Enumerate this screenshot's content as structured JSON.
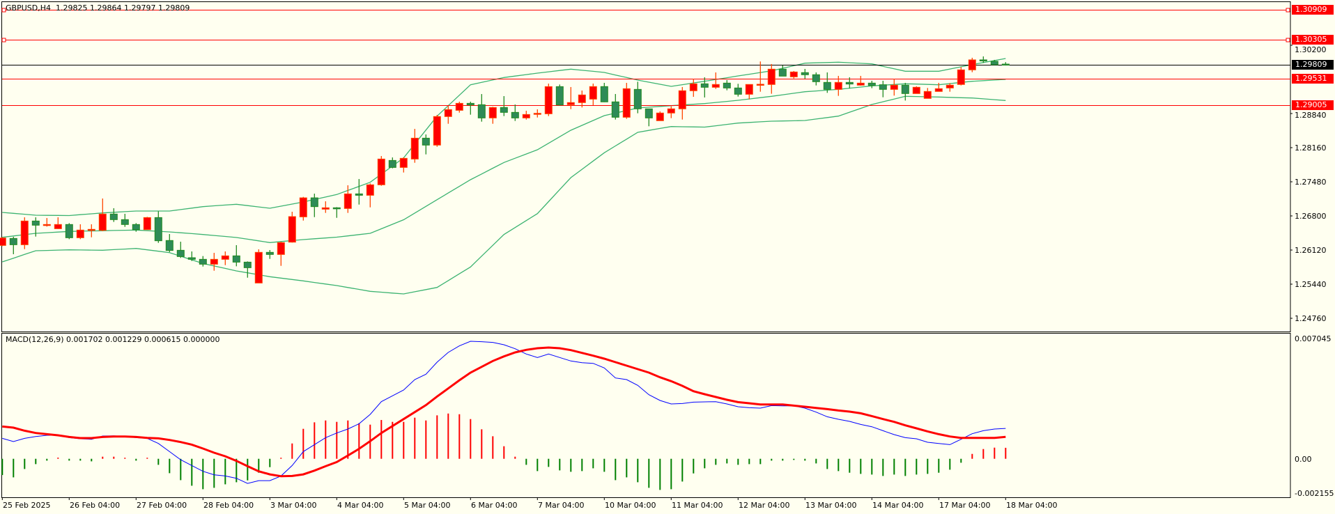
{
  "header": {
    "symbol": "GBPUSD,H4",
    "ohlc_text": "1.29825 1.29864 1.29797 1.29809"
  },
  "colors": {
    "background": "#fffff0",
    "bull_candle": "#ff0000",
    "bull_border": "#ff4500",
    "bear_candle": "#2e8b57",
    "bear_border": "#228b22",
    "bands": "#3cb371",
    "level_line": "#ff0000",
    "price_line": "#000000",
    "macd_line": "#0000ff",
    "signal_line": "#ff0000",
    "hist_positive": "#ff0000",
    "hist_negative": "#008000"
  },
  "price_axis": {
    "ticks": [
      "1.30200",
      "1.28840",
      "1.28160",
      "1.27480",
      "1.26800",
      "1.26120",
      "1.25440",
      "1.24760"
    ]
  },
  "levels": [
    {
      "label": "1.30909",
      "value": 1.30909,
      "handles": true
    },
    {
      "label": "1.30305",
      "value": 1.30305,
      "handles": true
    },
    {
      "label": "1.29531",
      "value": 1.29531,
      "handles": false
    },
    {
      "label": "1.29005",
      "value": 1.29005,
      "handles": false
    }
  ],
  "current_price": {
    "label": "1.29809",
    "value": 1.29809
  },
  "macd": {
    "label": "MACD(12,26,9) 0.001702 0.001229 0.000615 0.000000",
    "axis_ticks": [
      "0.007045",
      "0.00",
      "-0.002155"
    ],
    "range": [
      -0.002155,
      0.007045
    ],
    "macd": [
      0.001144,
      0.000962,
      0.001144,
      0.001248,
      0.001313,
      0.001313,
      0.001183,
      0.001118,
      0.001092,
      0.001274,
      0.001287,
      0.001248,
      0.001183,
      0.001144,
      0.000858,
      0.000403,
      -5.2e-05,
      -0.000377,
      -0.000702,
      -0.000897,
      -0.000962,
      -0.001092,
      -0.001378,
      -0.001222,
      -0.001222,
      -0.000962,
      -0.000377,
      0.000403,
      0.000793,
      0.001183,
      0.001443,
      0.001664,
      0.001963,
      0.002483,
      0.003198,
      0.003523,
      0.003848,
      0.004433,
      0.004732,
      0.005408,
      0.005954,
      0.006318,
      0.006578,
      0.006552,
      0.006513,
      0.006383,
      0.006162,
      0.005863,
      0.005668,
      0.005863,
      0.005668,
      0.005473,
      0.005382,
      0.005343,
      0.005083,
      0.004524,
      0.004433,
      0.004108,
      0.003588,
      0.003263,
      0.003068,
      0.003094,
      0.003172,
      0.003185,
      0.003198,
      0.003068,
      0.002912,
      0.00286,
      0.002834,
      0.002977,
      0.002964,
      0.002964,
      0.002834,
      0.002613,
      0.002353,
      0.00221,
      0.002093,
      0.001924,
      0.001794,
      0.001573,
      0.001352,
      0.001183,
      0.001118,
      0.000923,
      0.000858,
      0.000793,
      0.001092,
      0.001404,
      0.001573,
      0.001664,
      0.001702
    ],
    "signal": [
      0.001807,
      0.001742,
      0.001573,
      0.001443,
      0.001378,
      0.001313,
      0.001222,
      0.001157,
      0.001157,
      0.001222,
      0.001248,
      0.001248,
      0.001222,
      0.00117,
      0.001144,
      0.001053,
      0.000936,
      0.000793,
      0.000572,
      0.000338,
      0.000143,
      -0.000117,
      -0.000416,
      -0.000702,
      -0.000871,
      -0.000975,
      -0.000962,
      -0.000871,
      -0.000663,
      -0.000416,
      -0.000182,
      0.000182,
      0.000559,
      0.000988,
      0.001443,
      0.001833,
      0.002223,
      0.002613,
      0.003003,
      0.003484,
      0.003939,
      0.004394,
      0.004823,
      0.005148,
      0.005473,
      0.005733,
      0.005954,
      0.006097,
      0.006188,
      0.006227,
      0.006188,
      0.006084,
      0.005928,
      0.005772,
      0.005603,
      0.005408,
      0.005213,
      0.005018,
      0.004823,
      0.004563,
      0.004342,
      0.004082,
      0.003783,
      0.003614,
      0.003458,
      0.003302,
      0.003172,
      0.003107,
      0.003042,
      0.003042,
      0.003042,
      0.002977,
      0.002912,
      0.002847,
      0.002782,
      0.002704,
      0.002639,
      0.002548,
      0.002392,
      0.002223,
      0.002067,
      0.001872,
      0.001703,
      0.001534,
      0.001378,
      0.001248,
      0.00117,
      0.00117,
      0.00117,
      0.00117,
      0.001229
    ],
    "histogram": [
      -0.00091,
      -0.00104,
      -0.000572,
      -0.000299,
      -0.000104,
      6.5e-05,
      -0.000104,
      -0.000104,
      -0.000143,
      0.000117,
      0.000117,
      5.2e-05,
      -0.000104,
      2.6e-05,
      -0.000338,
      -0.000806,
      -0.001196,
      -0.001508,
      -0.001703,
      -0.001625,
      -0.00143,
      -0.001313,
      -0.001209,
      -0.00078,
      -0.000468,
      2.6e-05,
      0.000858,
      0.001677,
      0.002041,
      0.002145,
      0.002067,
      0.002145,
      0.001989,
      0.001911,
      0.002171,
      0.002067,
      0.002067,
      0.002301,
      0.002145,
      0.002431,
      0.002535,
      0.002496,
      0.002223,
      0.001651,
      0.001261,
      0.000702,
      0.000117,
      -0.000338,
      -0.000689,
      -0.000455,
      -0.00065,
      -0.000728,
      -0.000689,
      -0.000533,
      -0.000728,
      -0.001196,
      -0.00104,
      -0.001313,
      -0.001625,
      -0.001742,
      -0.001703,
      -0.001274,
      -0.000819,
      -0.000533,
      -0.000338,
      -0.00026,
      -0.000338,
      -0.000299,
      -0.000299,
      -0.000104,
      -0.000104,
      -6.5e-05,
      -0.000104,
      -0.00026,
      -0.000572,
      -0.000689,
      -0.00078,
      -0.000845,
      -0.000884,
      -0.000962,
      -0.000884,
      -0.000962,
      -0.000884,
      -0.000845,
      -0.00078,
      -0.000611,
      -0.000221,
      0.000273,
      0.000546,
      0.000624,
      0.000615
    ]
  },
  "time_axis": {
    "labels": [
      "25 Feb 2025",
      "26 Feb 04:00",
      "27 Feb 04:00",
      "28 Feb 04:00",
      "3 Mar 04:00",
      "4 Mar 04:00",
      "5 Mar 04:00",
      "6 Mar 04:00",
      "7 Mar 04:00",
      "10 Mar 04:00",
      "11 Mar 04:00",
      "12 Mar 04:00",
      "13 Mar 04:00",
      "14 Mar 04:00",
      "17 Mar 04:00",
      "18 Mar 04:00"
    ],
    "bars_per_label": 6
  },
  "chart_data": {
    "type": "candlestick",
    "title": "GBPUSD,H4",
    "ylim": [
      1.2442,
      1.31102
    ],
    "ohlc_order": [
      "open",
      "high",
      "low",
      "close"
    ],
    "candles": [
      [
        1.26212,
        1.26374,
        1.26198,
        1.2636
      ],
      [
        1.26351,
        1.26384,
        1.26037,
        1.26226
      ],
      [
        1.26226,
        1.26772,
        1.26138,
        1.26698
      ],
      [
        1.26698,
        1.26772,
        1.26388,
        1.26615
      ],
      [
        1.2661,
        1.26758,
        1.26587,
        1.26629
      ],
      [
        1.26545,
        1.26772,
        1.26541,
        1.26629
      ],
      [
        1.26629,
        1.26656,
        1.26337,
        1.26365
      ],
      [
        1.26365,
        1.26633,
        1.26337,
        1.26518
      ],
      [
        1.26513,
        1.26633,
        1.26374,
        1.26532
      ],
      [
        1.26513,
        1.27147,
        1.26495,
        1.26837
      ],
      [
        1.26837,
        1.26953,
        1.2668,
        1.26726
      ],
      [
        1.26726,
        1.26842,
        1.26582,
        1.26629
      ],
      [
        1.26629,
        1.26656,
        1.26485,
        1.26527
      ],
      [
        1.26527,
        1.26781,
        1.26522,
        1.26767
      ],
      [
        1.26767,
        1.26892,
        1.26263,
        1.26305
      ],
      [
        1.2631,
        1.26439,
        1.26078,
        1.26111
      ],
      [
        1.26115,
        1.26286,
        1.25963,
        1.2599
      ],
      [
        1.25967,
        1.26092,
        1.25902,
        1.25935
      ],
      [
        1.25935,
        1.26,
        1.25791,
        1.25838
      ],
      [
        1.25838,
        1.26064,
        1.25708,
        1.25935
      ],
      [
        1.25935,
        1.26092,
        1.25819,
        1.26004
      ],
      [
        1.26004,
        1.26217,
        1.25796,
        1.25879
      ],
      [
        1.25879,
        1.25893,
        1.25569,
        1.25768
      ],
      [
        1.25463,
        1.26134,
        1.25463,
        1.26074
      ],
      [
        1.26074,
        1.2612,
        1.25944,
        1.26032
      ],
      [
        1.26032,
        1.26286,
        1.25805,
        1.26268
      ],
      [
        1.26277,
        1.26883,
        1.26268,
        1.26786
      ],
      [
        1.26781,
        1.27179,
        1.26707,
        1.2716
      ],
      [
        1.2716,
        1.27244,
        1.26776,
        1.26985
      ],
      [
        1.26934,
        1.27091,
        1.2686,
        1.26962
      ],
      [
        1.26962,
        1.26975,
        1.26762,
        1.26943
      ],
      [
        1.26948,
        1.2741,
        1.2686,
        1.27239
      ],
      [
        1.27239,
        1.27535,
        1.27026,
        1.27211
      ],
      [
        1.27211,
        1.27447,
        1.26971,
        1.2742
      ],
      [
        1.2742,
        1.27993,
        1.27401,
        1.27933
      ],
      [
        1.27905,
        1.27965,
        1.27748,
        1.27766
      ],
      [
        1.27766,
        1.27965,
        1.27665,
        1.27947
      ],
      [
        1.27933,
        1.28534,
        1.27859,
        1.28349
      ],
      [
        1.28349,
        1.28423,
        1.28026,
        1.28211
      ],
      [
        1.28211,
        1.28812,
        1.28178,
        1.2878
      ],
      [
        1.2878,
        1.28997,
        1.28636,
        1.28918
      ],
      [
        1.28904,
        1.29076,
        1.28858,
        1.29043
      ],
      [
        1.29043,
        1.29076,
        1.28817,
        1.29011
      ],
      [
        1.29015,
        1.29228,
        1.28678,
        1.28752
      ],
      [
        1.28752,
        1.28974,
        1.28636,
        1.2896
      ],
      [
        1.2896,
        1.29187,
        1.28789,
        1.28863
      ],
      [
        1.28863,
        1.2902,
        1.28692,
        1.28752
      ],
      [
        1.28752,
        1.28895,
        1.28719,
        1.28821
      ],
      [
        1.28835,
        1.28923,
        1.28761,
        1.28844
      ],
      [
        1.28835,
        1.29436,
        1.28789,
        1.29376
      ],
      [
        1.29376,
        1.29418,
        1.28997,
        1.29011
      ],
      [
        1.29016,
        1.29368,
        1.28928,
        1.29058
      ],
      [
        1.29058,
        1.29298,
        1.28961,
        1.2921
      ],
      [
        1.29127,
        1.29437,
        1.29007,
        1.29377
      ],
      [
        1.29377,
        1.29451,
        1.29067,
        1.29072
      ],
      [
        1.29072,
        1.29229,
        1.2872,
        1.28766
      ],
      [
        1.28766,
        1.29451,
        1.28734,
        1.29335
      ],
      [
        1.29321,
        1.29474,
        1.28845,
        1.28933
      ],
      [
        1.28933,
        1.28933,
        1.28586,
        1.28752
      ],
      [
        1.28697,
        1.28882,
        1.28697,
        1.2885
      ],
      [
        1.2885,
        1.28984,
        1.28748,
        1.28933
      ],
      [
        1.28933,
        1.29368,
        1.2872,
        1.29294
      ],
      [
        1.29294,
        1.2953,
        1.29173,
        1.29432
      ],
      [
        1.29432,
        1.29562,
        1.2916,
        1.29363
      ],
      [
        1.29363,
        1.29659,
        1.29331,
        1.29419
      ],
      [
        1.29446,
        1.29506,
        1.29303,
        1.29349
      ],
      [
        1.29349,
        1.29432,
        1.29178,
        1.29224
      ],
      [
        1.29224,
        1.29419,
        1.29123,
        1.29419
      ],
      [
        1.29414,
        1.29877,
        1.29275,
        1.29423
      ],
      [
        1.29419,
        1.29826,
        1.29234,
        1.29724
      ],
      [
        1.29724,
        1.29798,
        1.29585,
        1.29585
      ],
      [
        1.29571,
        1.29687,
        1.29539,
        1.29668
      ],
      [
        1.29655,
        1.29729,
        1.29534,
        1.29613
      ],
      [
        1.29613,
        1.29659,
        1.294,
        1.29474
      ],
      [
        1.2946,
        1.29659,
        1.29252,
        1.29321
      ],
      [
        1.29321,
        1.2959,
        1.29192,
        1.2946
      ],
      [
        1.2946,
        1.29562,
        1.2934,
        1.29428
      ],
      [
        1.29405,
        1.2959,
        1.29395,
        1.29446
      ],
      [
        1.29446,
        1.29493,
        1.29345,
        1.294
      ],
      [
        1.29414,
        1.29493,
        1.29164,
        1.29321
      ],
      [
        1.29321,
        1.2953,
        1.29197,
        1.29405
      ],
      [
        1.29405,
        1.29451,
        1.29099,
        1.29238
      ],
      [
        1.29238,
        1.29382,
        1.29238,
        1.29363
      ],
      [
        1.29141,
        1.29349,
        1.29141,
        1.2928
      ],
      [
        1.2928,
        1.29451,
        1.2928,
        1.29335
      ],
      [
        1.29349,
        1.29446,
        1.29275,
        1.29405
      ],
      [
        1.29419,
        1.29766,
        1.294,
        1.2971
      ],
      [
        1.2971,
        1.29951,
        1.29664,
        1.29909
      ],
      [
        1.29909,
        1.29978,
        1.29849,
        1.299
      ],
      [
        1.29881,
        1.29909,
        1.29807,
        1.29812
      ],
      [
        1.29825,
        1.29864,
        1.29797,
        1.29809
      ]
    ],
    "bollinger_samples": {
      "bar_index": [
        0,
        3,
        6,
        9,
        12,
        15,
        18,
        21,
        24,
        27,
        30,
        33,
        36,
        39,
        42,
        45,
        48,
        51,
        54,
        57,
        60,
        63,
        66,
        69,
        72,
        75,
        78,
        81,
        84,
        87,
        90
      ],
      "upper": [
        1.2687,
        1.26814,
        1.26807,
        1.2686,
        1.26897,
        1.26897,
        1.26985,
        1.27032,
        1.26953,
        1.27078,
        1.27226,
        1.2747,
        1.27956,
        1.28789,
        1.29413,
        1.29557,
        1.29645,
        1.29724,
        1.29659,
        1.29506,
        1.29381,
        1.29483,
        1.29589,
        1.29691,
        1.29843,
        1.29863,
        1.29829,
        1.29682,
        1.29682,
        1.29816,
        1.29936
      ],
      "middle": [
        1.26374,
        1.26453,
        1.26491,
        1.26505,
        1.26518,
        1.26481,
        1.2643,
        1.2637,
        1.26269,
        1.26328,
        1.26377,
        1.26453,
        1.26724,
        1.27123,
        1.27522,
        1.27864,
        1.28118,
        1.28507,
        1.28798,
        1.28951,
        1.28997,
        1.29038,
        1.29104,
        1.29183,
        1.29274,
        1.29322,
        1.29391,
        1.29433,
        1.29413,
        1.29483,
        1.2952
      ],
      "lower": [
        1.25884,
        1.26106,
        1.26124,
        1.26116,
        1.26152,
        1.26069,
        1.25852,
        1.25704,
        1.25589,
        1.25505,
        1.25412,
        1.25297,
        1.25246,
        1.25375,
        1.25783,
        1.2643,
        1.26846,
        1.27563,
        1.28059,
        1.28465,
        1.28581,
        1.28569,
        1.2865,
        1.28687,
        1.28701,
        1.28789,
        1.2902,
        1.29183,
        1.29169,
        1.29149,
        1.291
      ]
    }
  }
}
